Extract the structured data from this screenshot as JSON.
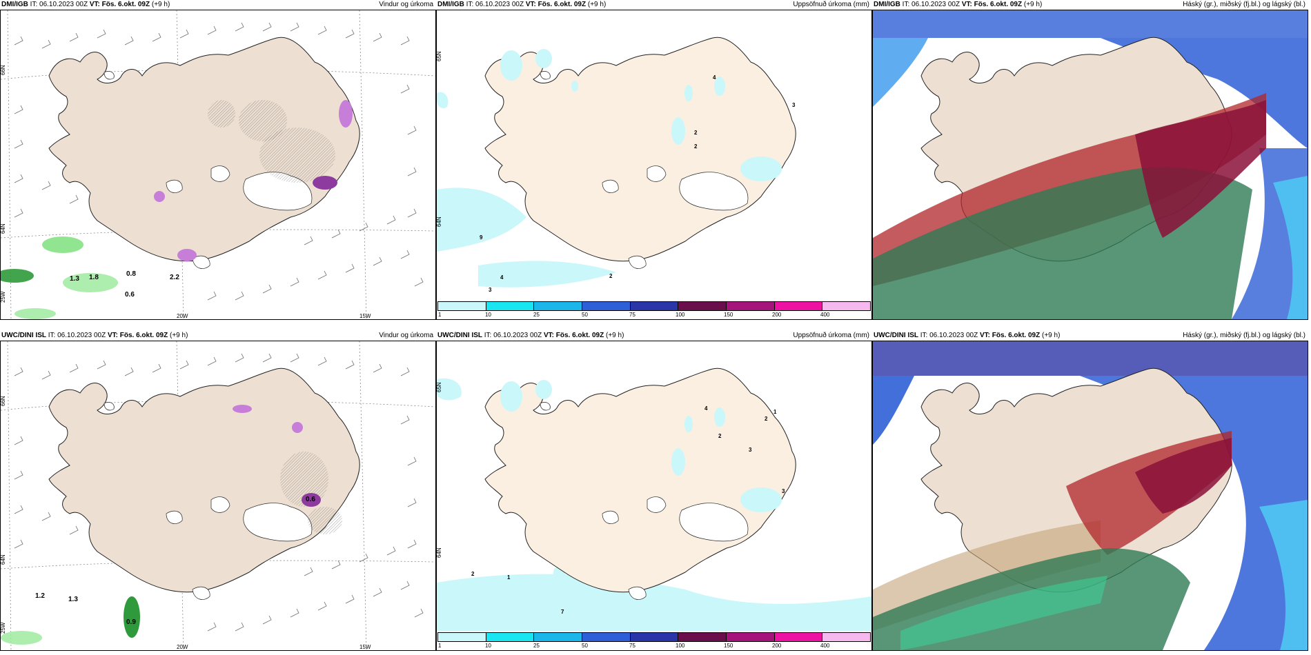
{
  "panels": [
    {
      "source": "DMI/IGB",
      "it": "IT: 06.10.2023 00Z",
      "vt": "VT: Fös. 6.okt. 09Z",
      "lead": "(+9 h)",
      "title": "Vindur og úrkoma",
      "type": "wind",
      "labels": [
        "0.8",
        "0.6",
        "2.2",
        "1.3",
        "1.8"
      ],
      "lat_labels": [
        "66N",
        "64N",
        "25W"
      ],
      "lon_labels": [
        "20W",
        "15W"
      ]
    },
    {
      "source": "DMI/IGB",
      "it": "IT: 06.10.2023 00Z",
      "vt": "VT: Fös. 6.okt. 09Z",
      "lead": "(+9 h)",
      "title": "Uppsöfnuð úrkoma (mm)",
      "type": "precip",
      "labels": [
        "2",
        "3",
        "2",
        "4",
        "9",
        "4",
        "3",
        "2"
      ],
      "lat_labels": [
        "65N",
        "64N"
      ]
    },
    {
      "source": "DMI/IGB",
      "it": "IT: 06.10.2023 00Z",
      "vt": "VT: Fös. 6.okt. 09Z",
      "lead": "(+9 h)",
      "title": "Háský (gr.), miðský (fj.bl.) og lágský (bl.)",
      "type": "cloud"
    },
    {
      "source": "UWC/DINI ISL",
      "it": "IT: 06.10.2023 00Z",
      "vt": "VT: Fös. 6.okt. 09Z",
      "lead": "(+9 h)",
      "title": "Vindur og úrkoma",
      "type": "wind",
      "labels": [
        "1.2",
        "1.3",
        "0.9",
        "0.6"
      ],
      "lat_labels": [
        "66N",
        "64N",
        "25W"
      ],
      "lon_labels": [
        "20W",
        "15W"
      ]
    },
    {
      "source": "UWC/DINI ISL",
      "it": "IT: 06.10.2023 00Z",
      "vt": "VT: Fös. 6.okt. 09Z",
      "lead": "(+9 h)",
      "title": "Uppsöfnuð úrkoma (mm)",
      "type": "precip",
      "labels": [
        "2",
        "1",
        "7",
        "4",
        "2",
        "3",
        "2",
        "1",
        "3"
      ],
      "lat_labels": [
        "65N",
        "64N"
      ]
    },
    {
      "source": "UWC/DINI ISL",
      "it": "IT: 06.10.2023 00Z",
      "vt": "VT: Fös. 6.okt. 09Z",
      "lead": "(+9 h)",
      "title": "Háský (gr.), miðský (fj.bl.) og lágský (bl.)",
      "type": "cloud"
    }
  ],
  "legend": {
    "ticks": [
      "1",
      "10",
      "25",
      "50",
      "75",
      "100",
      "150",
      "200",
      "400"
    ],
    "colors": [
      "#c9f7fa",
      "#19e6f0",
      "#1bb7ea",
      "#2e5fd6",
      "#2a35a8",
      "#6b0f4c",
      "#a4147a",
      "#ee12a2",
      "#f5b8ef"
    ]
  },
  "colors": {
    "land": "#ede0d2",
    "land_light": "#fbefe2",
    "precip_light": "#c9f7fa",
    "wind_precip": "#7ee07e",
    "snow_purple": "#c77ed8"
  }
}
